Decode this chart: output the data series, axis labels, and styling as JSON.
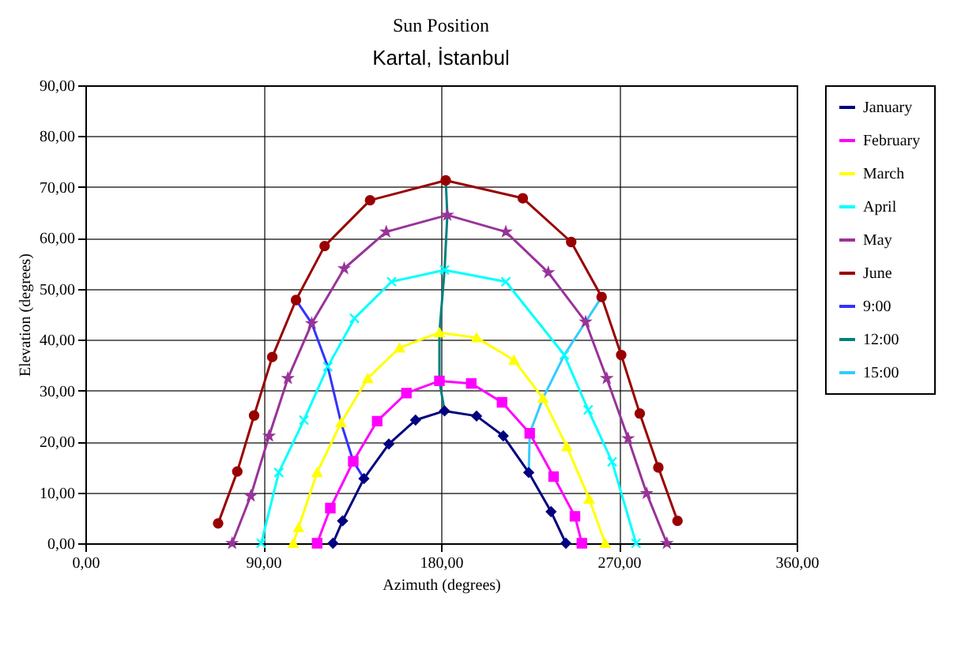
{
  "chart_data": {
    "type": "line",
    "title": "Sun Position",
    "subtitle": "Kartal, İstanbul",
    "xlabel": "Azimuth (degrees)",
    "ylabel": "Elevation (degrees)",
    "xlim": [
      0,
      360
    ],
    "xticks": [
      {
        "value": 0,
        "label": "0,00"
      },
      {
        "value": 90,
        "label": "90,00"
      },
      {
        "value": 180,
        "label": "180,00"
      },
      {
        "value": 270,
        "label": "270,00"
      },
      {
        "value": 360,
        "label": "360,00"
      }
    ],
    "ylim": [
      0,
      90
    ],
    "yticks": [
      {
        "value": 0,
        "label": "0,00"
      },
      {
        "value": 10,
        "label": "10,00"
      },
      {
        "value": 20,
        "label": "20,00"
      },
      {
        "value": 30,
        "label": "30,00"
      },
      {
        "value": 40,
        "label": "40,00"
      },
      {
        "value": 50,
        "label": "50,00"
      },
      {
        "value": 60,
        "label": "60,00"
      },
      {
        "value": 70,
        "label": "70,00"
      },
      {
        "value": 80,
        "label": "80,00"
      },
      {
        "value": 90,
        "label": "90,00"
      }
    ],
    "grid": true,
    "legend": "right",
    "series": [
      {
        "name": "January",
        "color": "#000080",
        "marker": "diamond",
        "x": [
          125.3,
          130.2,
          141,
          153.6,
          167.1,
          181.8,
          198,
          211.5,
          224.4,
          235.7,
          243.2
        ],
        "values": [
          0,
          4.4,
          12.7,
          19.5,
          24.2,
          26,
          25,
          21.1,
          13.9,
          6.2,
          0
        ]
      },
      {
        "name": "February",
        "color": "#ff00ff",
        "marker": "square",
        "x": [
          117.3,
          124,
          135.6,
          147.7,
          162.5,
          179.2,
          195.3,
          210.9,
          224.9,
          237,
          247.8,
          251.3
        ],
        "values": [
          0,
          6.9,
          16.1,
          24,
          29.5,
          31.9,
          31.4,
          27.7,
          21.6,
          13.1,
          5.3,
          0
        ]
      },
      {
        "name": "March",
        "color": "#ffff00",
        "marker": "triangle",
        "x": [
          105.2,
          107.9,
          117.3,
          129.4,
          142.9,
          159,
          179.2,
          198,
          216.9,
          231.6,
          243.7,
          255,
          263.1
        ],
        "values": [
          0,
          3.1,
          13.9,
          23.7,
          32.4,
          38.4,
          41.4,
          40.4,
          36,
          28.5,
          19,
          8.7,
          0
        ]
      },
      {
        "name": "April",
        "color": "#00ffff",
        "marker": "cross",
        "x": [
          89,
          97.9,
          110.6,
          122.7,
          136.2,
          155,
          181.8,
          212.8,
          242.4,
          254.5,
          266.6,
          278.7
        ],
        "values": [
          0,
          13.9,
          24.2,
          34.7,
          44.2,
          51.4,
          53.7,
          51.4,
          37,
          26.2,
          16,
          0
        ]
      },
      {
        "name": "May",
        "color": "#993399",
        "marker": "star",
        "x": [
          74.3,
          83.7,
          93,
          102.5,
          114.6,
          131,
          152.3,
          183.2,
          212.8,
          234.3,
          253.2,
          263.9,
          274.7,
          284.1,
          294.3
        ],
        "values": [
          0,
          9.3,
          21.1,
          32.4,
          43.2,
          54,
          61.2,
          64.5,
          61.2,
          53.2,
          43.5,
          32.4,
          20.6,
          9.8,
          0
        ]
      },
      {
        "name": "June",
        "color": "#990000",
        "marker": "circle",
        "x": [
          67.2,
          76.9,
          85.4,
          94.6,
          106.6,
          121.1,
          144.1,
          182.4,
          221.4,
          245.9,
          261.3,
          271.2,
          280.6,
          290,
          299.7
        ],
        "values": [
          3.9,
          14.1,
          25.1,
          36.6,
          47.8,
          58.4,
          67.4,
          71.3,
          67.8,
          59.2,
          48.4,
          37,
          25.5,
          14.9,
          4.4
        ]
      },
      {
        "name": "9:00",
        "color": "#3333ff",
        "marker": "none",
        "x": [
          106.6,
          114.6,
          122.7,
          129.4,
          135.6,
          141
        ],
        "values": [
          47.8,
          43.2,
          34.7,
          23.7,
          16.1,
          12.7
        ]
      },
      {
        "name": "12:00",
        "color": "#008080",
        "marker": "none",
        "x": [
          182.4,
          183.2,
          181.8,
          179.2,
          179.2,
          181.8
        ],
        "values": [
          71.3,
          64.5,
          53.7,
          41.4,
          31.9,
          26
        ]
      },
      {
        "name": "15:00",
        "color": "#33ccff",
        "marker": "none",
        "x": [
          261.3,
          253.2,
          242.4,
          231.6,
          224.9,
          224.4
        ],
        "values": [
          48.4,
          43.5,
          37,
          28.5,
          21.6,
          13.9
        ]
      }
    ]
  }
}
